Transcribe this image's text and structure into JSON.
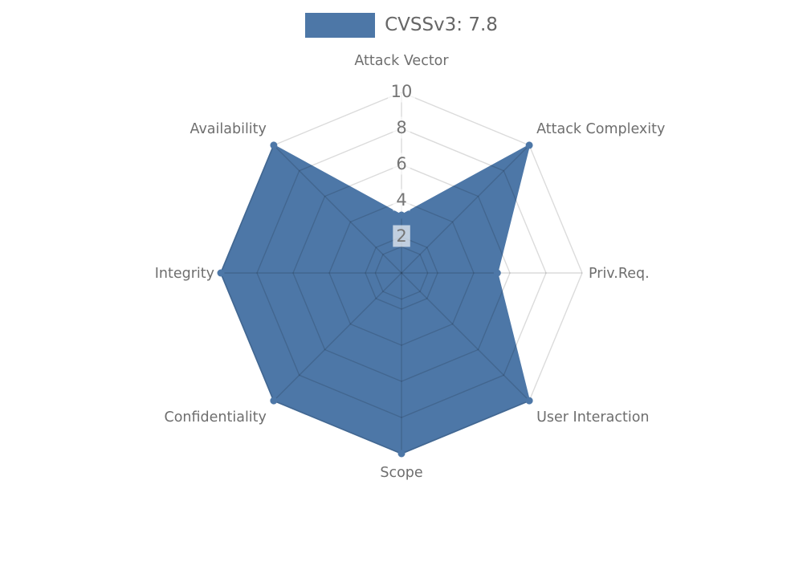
{
  "figure": {
    "background": "#ffffff"
  },
  "legend": {
    "label": "CVSSv3: 7.8"
  },
  "colors": {
    "series_fill": "#4d77a7",
    "grid_line": "rgba(0,0,0,0.14)",
    "axis_label_text": "#6e6e6e",
    "tick_text": "#757575",
    "tick_backdrop": "rgba(255,255,255,0.65)",
    "legend_text": "#666666"
  },
  "chart_data": {
    "type": "radar",
    "title": "",
    "categories": [
      "Attack Vector",
      "Attack Complexity",
      "Priv.Req.",
      "User Interaction",
      "Scope",
      "Confidentiality",
      "Integrity",
      "Availability"
    ],
    "series": [
      {
        "name": "CVSSv3: 7.8",
        "values": [
          3.2,
          10,
          5.3,
          10,
          10,
          10,
          10,
          10
        ]
      }
    ],
    "scale": {
      "min": 0,
      "max": 10,
      "ticks": [
        2,
        4,
        6,
        8,
        10
      ],
      "grid_ring_values": [
        1.45,
        2,
        4,
        6,
        8,
        10
      ]
    },
    "legend_position": "top",
    "grid": true,
    "axis_start": "top",
    "direction": "clockwise"
  }
}
